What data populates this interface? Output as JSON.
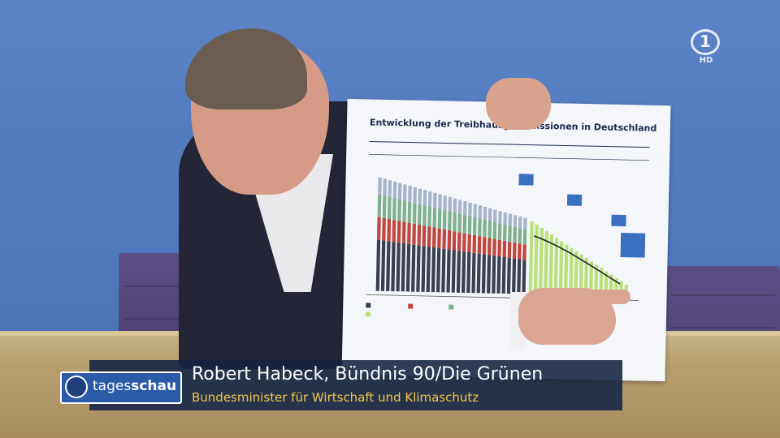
{
  "lower_third": {
    "name_line": "Robert Habeck, Bündnis 90/Die Grünen",
    "role_line": "Bundesminister für Wirtschaft und Klimaschutz"
  },
  "badge": {
    "brand_regular": "tages",
    "brand_bold": "schau"
  },
  "channel_bug": {
    "logo": "1",
    "quality": "HD"
  },
  "held_chart": {
    "title": "Entwicklung der Treibhausgasemissionen in Deutschland"
  },
  "colors": {
    "lower_third_name": "#ffffff",
    "lower_third_role": "#f0c64a",
    "badge_blue": "#2b5aa8",
    "backdrop_blue": "#4f78bd"
  }
}
